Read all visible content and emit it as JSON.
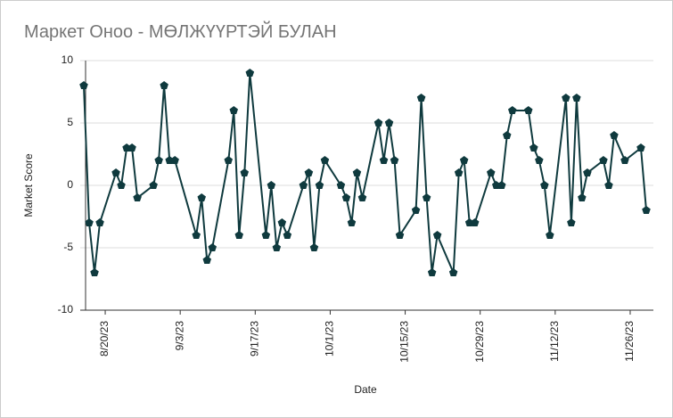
{
  "chart_data": {
    "type": "line",
    "title": "Маркет Оноо - МӨЛЖҮҮРТЭЙ БУЛАН",
    "x_label": "Date",
    "y_label": "Market Score",
    "x": [
      "8/16/23",
      "8/17/23",
      "8/18/23",
      "8/19/23",
      "8/22/23",
      "8/23/23",
      "8/24/23",
      "8/25/23",
      "8/26/23",
      "8/29/23",
      "8/30/23",
      "8/31/23",
      "9/1/23",
      "9/2/23",
      "9/6/23",
      "9/7/23",
      "9/8/23",
      "9/9/23",
      "9/12/23",
      "9/13/23",
      "9/14/23",
      "9/15/23",
      "9/16/23",
      "9/19/23",
      "9/20/23",
      "9/21/23",
      "9/22/23",
      "9/23/23",
      "9/26/23",
      "9/27/23",
      "9/28/23",
      "9/29/23",
      "9/30/23",
      "10/3/23",
      "10/4/23",
      "10/5/23",
      "10/6/23",
      "10/7/23",
      "10/10/23",
      "10/11/23",
      "10/12/23",
      "10/13/23",
      "10/14/23",
      "10/17/23",
      "10/18/23",
      "10/19/23",
      "10/20/23",
      "10/21/23",
      "10/24/23",
      "10/25/23",
      "10/26/23",
      "10/27/23",
      "10/28/23",
      "10/31/23",
      "11/1/23",
      "11/2/23",
      "11/3/23",
      "11/4/23",
      "11/7/23",
      "11/8/23",
      "11/9/23",
      "11/10/23",
      "11/11/23",
      "11/14/23",
      "11/15/23",
      "11/16/23",
      "11/17/23",
      "11/18/23",
      "11/21/23",
      "11/22/23",
      "11/23/23",
      "11/25/23",
      "11/28/23",
      "11/29/23"
    ],
    "series": [
      {
        "name": "Market Score",
        "color": "#0f3a3e",
        "values": [
          8,
          -3,
          -7,
          -3,
          1,
          0,
          3,
          3,
          -1,
          0,
          2,
          8,
          2,
          2,
          -4,
          -1,
          -6,
          -5,
          2,
          6,
          -4,
          1,
          9,
          -4,
          0,
          -5,
          -3,
          -4,
          0,
          1,
          -5,
          0,
          2,
          0,
          -1,
          -3,
          1,
          -1,
          5,
          2,
          5,
          2,
          -4,
          -2,
          7,
          -1,
          -7,
          -4,
          -7,
          1,
          2,
          -3,
          -3,
          1,
          0,
          0,
          4,
          6,
          6,
          3,
          2,
          0,
          -4,
          7,
          -3,
          7,
          -1,
          1,
          2,
          0,
          4,
          2,
          3,
          -2
        ]
      }
    ],
    "xlim": [
      "8/16/23",
      "11/29/23"
    ],
    "xticks": [
      "8/20/23",
      "9/3/23",
      "9/17/23",
      "10/1/23",
      "10/15/23",
      "10/29/23",
      "11/12/23",
      "11/26/23"
    ],
    "ylim": [
      -10,
      10
    ],
    "yticks": [
      -10,
      -5,
      0,
      5,
      10
    ],
    "grid": true
  }
}
